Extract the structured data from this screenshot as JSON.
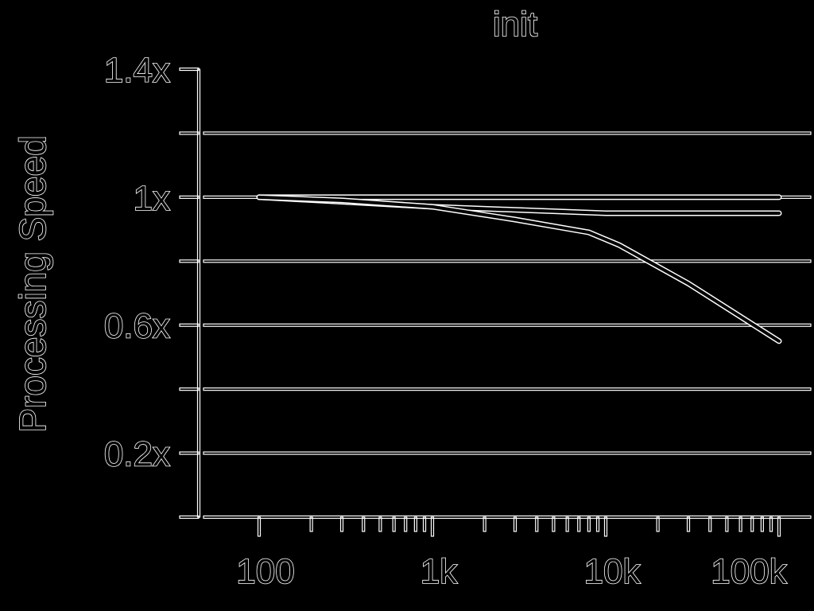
{
  "colors": {
    "background": "#000000",
    "foreground": "#ffffff"
  },
  "chart_data": {
    "type": "line",
    "title": "init",
    "ylabel": "Processing Speed",
    "xlabel": "",
    "x_scale": "log",
    "xlim": [
      100,
      130000
    ],
    "ylim": [
      0,
      1.4
    ],
    "x_tick_labels": [
      {
        "value": 100,
        "label": "100"
      },
      {
        "value": 1000,
        "label": "1k"
      },
      {
        "value": 10000,
        "label": "10k"
      },
      {
        "value": 100000,
        "label": "100k"
      }
    ],
    "y_tick_labels": [
      {
        "value": 1.4,
        "label": "1.4x"
      },
      {
        "value": 1.0,
        "label": "1x"
      },
      {
        "value": 0.6,
        "label": "0.6x"
      },
      {
        "value": 0.2,
        "label": "0.2x"
      }
    ],
    "y_gridlines": [
      0.2,
      0.4,
      0.6,
      0.8,
      1.0,
      1.2
    ],
    "grid": true,
    "series": [
      {
        "x": [
          100,
          1000,
          10000,
          100000
        ],
        "y": [
          1.0,
          1.0,
          1.0,
          1.0
        ]
      },
      {
        "x": [
          100,
          1000,
          10000,
          100000
        ],
        "y": [
          1.0,
          0.97,
          0.95,
          0.95
        ]
      },
      {
        "x": [
          100,
          300,
          1000,
          3000,
          8000,
          12000,
          30000,
          100000
        ],
        "y": [
          1.0,
          0.99,
          0.97,
          0.93,
          0.89,
          0.85,
          0.73,
          0.55
        ]
      }
    ]
  }
}
